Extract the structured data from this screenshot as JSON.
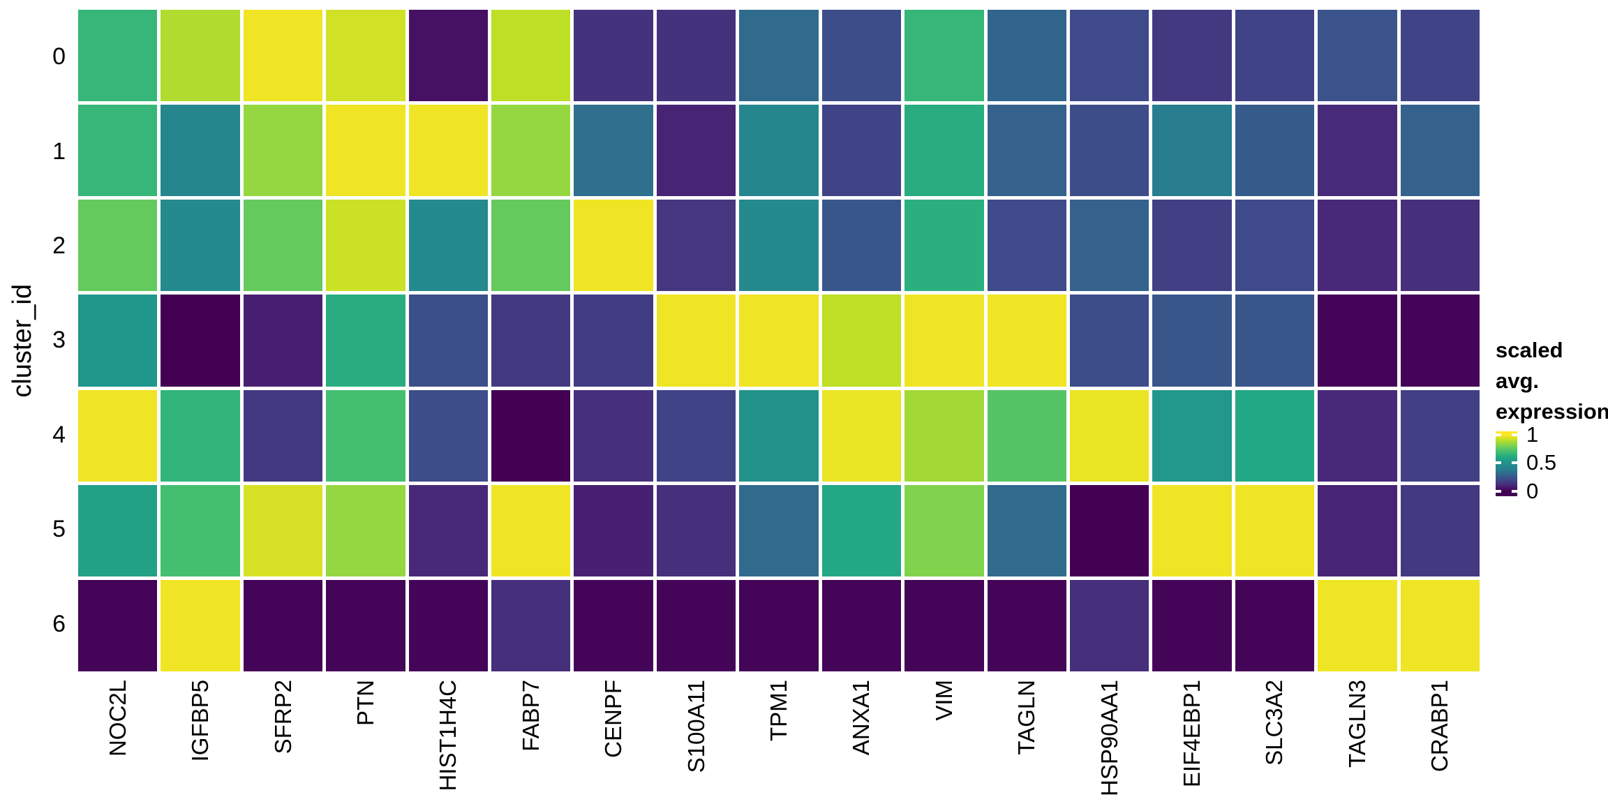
{
  "figure": {
    "background": "#ffffff",
    "text_color": "#000000"
  },
  "chart_data": {
    "type": "heatmap",
    "title": "",
    "xlabel": "",
    "ylabel": "cluster_id",
    "x_categories": [
      "NOC2L",
      "IGFBP5",
      "SFRP2",
      "PTN",
      "HIST1H4C",
      "FABP7",
      "CENPF",
      "S100A11",
      "TPM1",
      "ANXA1",
      "VIM",
      "TAGLN",
      "HSP90AA1",
      "EIF4EBP1",
      "SLC3A2",
      "TAGLN3",
      "CRABP1"
    ],
    "y_categories": [
      "0",
      "1",
      "2",
      "3",
      "4",
      "5",
      "6"
    ],
    "values": [
      [
        0.66,
        0.88,
        0.98,
        0.93,
        0.04,
        0.9,
        0.13,
        0.13,
        0.31,
        0.21,
        0.66,
        0.29,
        0.2,
        0.15,
        0.18,
        0.23,
        0.18
      ],
      [
        0.66,
        0.43,
        0.84,
        0.98,
        0.98,
        0.84,
        0.33,
        0.09,
        0.43,
        0.18,
        0.62,
        0.28,
        0.21,
        0.38,
        0.26,
        0.11,
        0.28
      ],
      [
        0.76,
        0.45,
        0.76,
        0.92,
        0.45,
        0.76,
        0.98,
        0.14,
        0.45,
        0.24,
        0.63,
        0.2,
        0.28,
        0.17,
        0.2,
        0.1,
        0.12
      ],
      [
        0.52,
        0.0,
        0.08,
        0.62,
        0.22,
        0.15,
        0.16,
        0.98,
        0.98,
        0.9,
        0.98,
        0.98,
        0.21,
        0.24,
        0.24,
        0.01,
        0.01
      ],
      [
        0.98,
        0.65,
        0.15,
        0.7,
        0.21,
        0.0,
        0.12,
        0.18,
        0.51,
        0.97,
        0.86,
        0.73,
        0.97,
        0.53,
        0.6,
        0.1,
        0.17
      ],
      [
        0.57,
        0.7,
        0.94,
        0.84,
        0.1,
        0.98,
        0.08,
        0.12,
        0.31,
        0.6,
        0.81,
        0.31,
        0.0,
        0.98,
        0.98,
        0.09,
        0.15
      ],
      [
        0.01,
        0.98,
        0.01,
        0.01,
        0.01,
        0.12,
        0.01,
        0.01,
        0.01,
        0.01,
        0.01,
        0.01,
        0.12,
        0.01,
        0.01,
        0.98,
        0.98
      ]
    ],
    "value_range": [
      0,
      1
    ],
    "grid_lines": "white",
    "legend": {
      "position": "right",
      "title_lines": [
        "scaled avg.",
        "expression"
      ],
      "ticks": [
        1,
        0.5,
        0
      ],
      "tick_labels": [
        "1",
        "0.5",
        "0"
      ]
    },
    "colormap": {
      "name": "viridis",
      "stops": [
        [
          0.0,
          "#440154"
        ],
        [
          0.1,
          "#482878"
        ],
        [
          0.2,
          "#3e4a89"
        ],
        [
          0.3,
          "#31688e"
        ],
        [
          0.4,
          "#26828e"
        ],
        [
          0.5,
          "#21918c"
        ],
        [
          0.6,
          "#22a884"
        ],
        [
          0.7,
          "#44bf70"
        ],
        [
          0.8,
          "#7ad151"
        ],
        [
          0.9,
          "#bddf26"
        ],
        [
          1.0,
          "#fde725"
        ]
      ]
    }
  }
}
